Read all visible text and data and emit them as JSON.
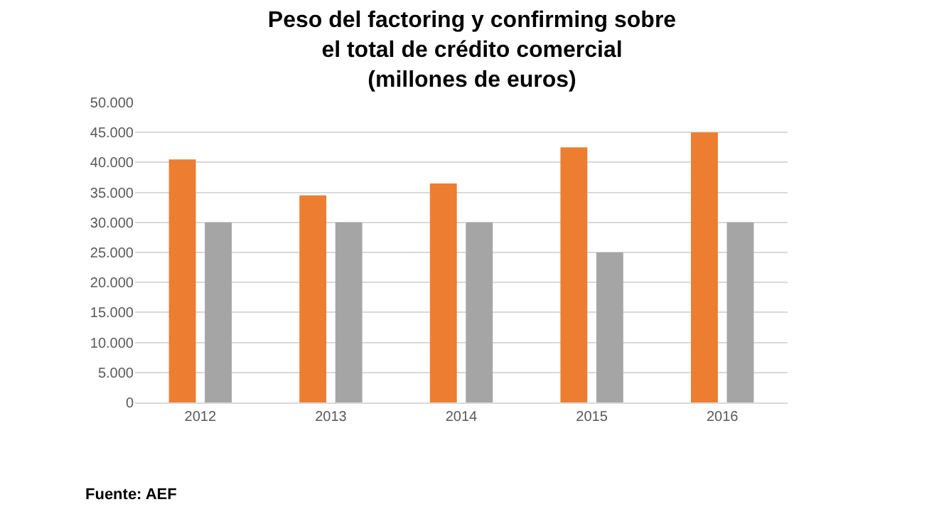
{
  "chart_data": {
    "type": "bar",
    "title": "Peso del factoring y confirming sobre\nel total de crédito comercial\n(millones de euros)",
    "categories": [
      "2012",
      "2013",
      "2014",
      "2015",
      "2016"
    ],
    "series": [
      {
        "color": "#ed7d31",
        "values": [
          40500,
          34500,
          36500,
          42500,
          45000
        ]
      },
      {
        "color": "#a5a5a5",
        "values": [
          30000,
          30000,
          30000,
          25000,
          30000
        ]
      }
    ],
    "ylim": [
      0,
      50000
    ],
    "yticks": [
      {
        "value": 0,
        "label": "0"
      },
      {
        "value": 5000,
        "label": "5.000"
      },
      {
        "value": 10000,
        "label": "10.000"
      },
      {
        "value": 15000,
        "label": "15.000"
      },
      {
        "value": 20000,
        "label": "20.000"
      },
      {
        "value": 25000,
        "label": "25.000"
      },
      {
        "value": 30000,
        "label": "30.000"
      },
      {
        "value": 35000,
        "label": "35.000"
      },
      {
        "value": 40000,
        "label": "40.000"
      },
      {
        "value": 45000,
        "label": "45.000"
      },
      {
        "value": 50000,
        "label": "50.000"
      }
    ],
    "grid": "y",
    "annotations": [
      "Fuente: AEF"
    ]
  }
}
